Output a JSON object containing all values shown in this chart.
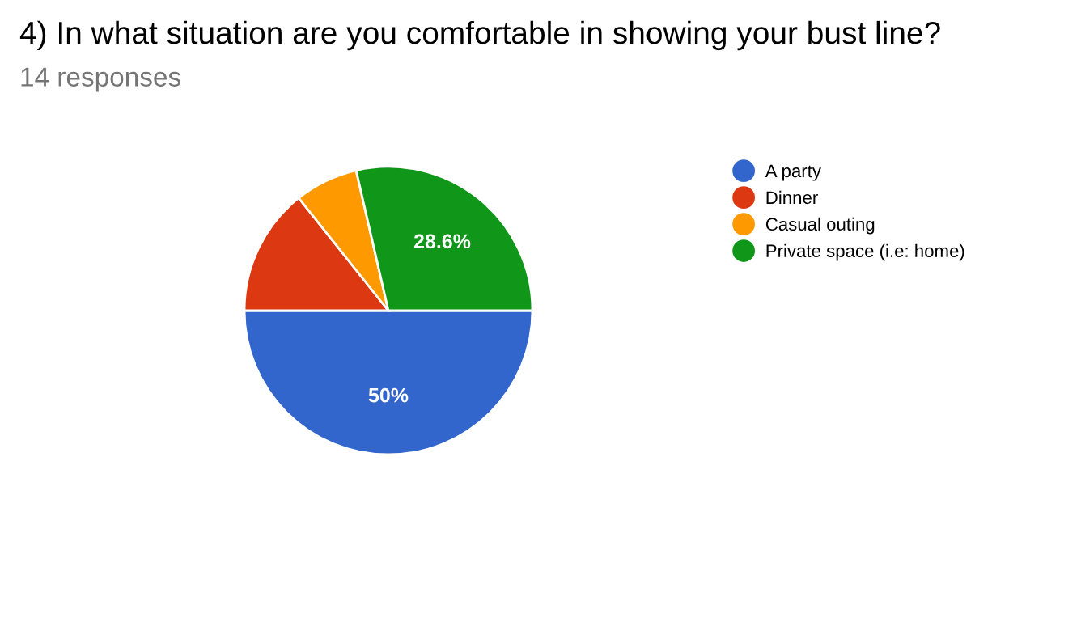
{
  "chart_data": {
    "type": "pie",
    "title": "4) In what situation are you comfortable in showing your bust line?",
    "subtitle": "14 responses",
    "categories": [
      "A party",
      "Dinner",
      "Casual outing",
      "Private space (i.e: home)"
    ],
    "values": [
      50,
      14.3,
      7.1,
      28.6
    ],
    "value_labels": [
      "50%",
      null,
      null,
      "28.6%"
    ],
    "colors": [
      "#3366cc",
      "#dc3912",
      "#ff9900",
      "#109618"
    ],
    "legend": "right"
  }
}
